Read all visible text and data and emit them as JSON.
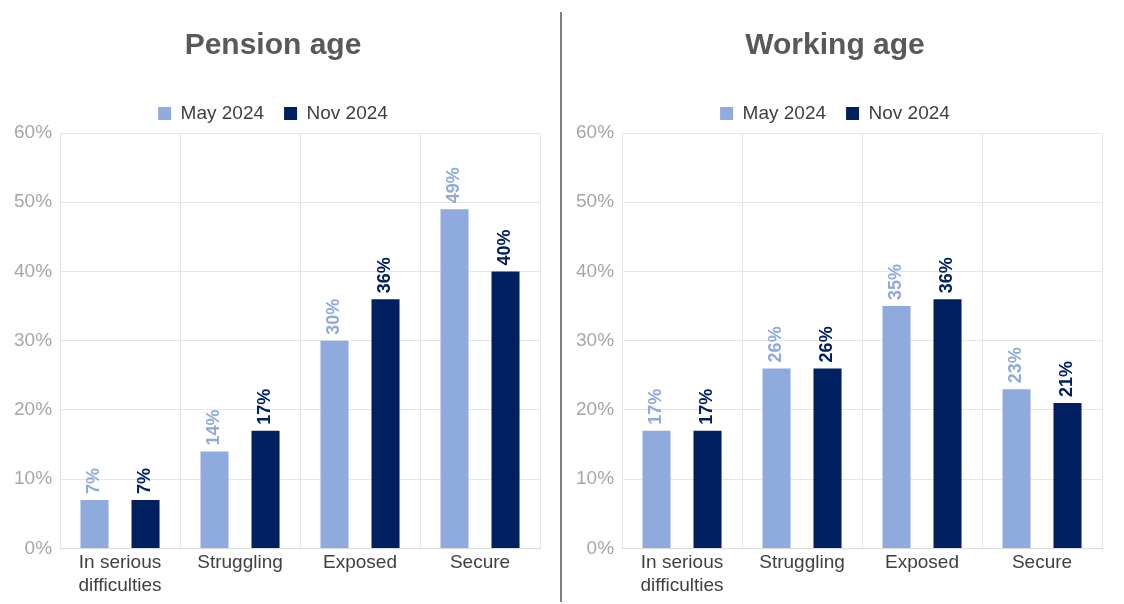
{
  "chart_data": [
    {
      "type": "bar",
      "title": "Pension age",
      "categories": [
        "In serious difficulties",
        "Struggling",
        "Exposed",
        "Secure"
      ],
      "series": [
        {
          "name": "May 2024",
          "color": "#8faadc",
          "values": [
            7,
            14,
            30,
            49
          ],
          "value_labels": [
            "7%",
            "14%",
            "30%",
            "49%"
          ]
        },
        {
          "name": "Nov 2024",
          "color": "#002060",
          "values": [
            7,
            17,
            36,
            40
          ],
          "value_labels": [
            "7%",
            "17%",
            "36%",
            "40%"
          ]
        }
      ],
      "ylim": [
        0,
        60
      ],
      "yticks": [
        {
          "value": 0,
          "label": "0%"
        },
        {
          "value": 10,
          "label": "10%"
        },
        {
          "value": 20,
          "label": "20%"
        },
        {
          "value": 30,
          "label": "30%"
        },
        {
          "value": 40,
          "label": "40%"
        },
        {
          "value": 50,
          "label": "50%"
        },
        {
          "value": 60,
          "label": "60%"
        }
      ],
      "grid": true,
      "legend": "top"
    },
    {
      "type": "bar",
      "title": "Working age",
      "categories": [
        "In serious difficulties",
        "Struggling",
        "Exposed",
        "Secure"
      ],
      "series": [
        {
          "name": "May 2024",
          "color": "#8faadc",
          "values": [
            17,
            26,
            35,
            23
          ],
          "value_labels": [
            "17%",
            "26%",
            "35%",
            "23%"
          ]
        },
        {
          "name": "Nov 2024",
          "color": "#002060",
          "values": [
            17,
            26,
            36,
            21
          ],
          "value_labels": [
            "17%",
            "26%",
            "36%",
            "21%"
          ]
        }
      ],
      "ylim": [
        0,
        60
      ],
      "yticks": [
        {
          "value": 0,
          "label": "0%"
        },
        {
          "value": 10,
          "label": "10%"
        },
        {
          "value": 20,
          "label": "20%"
        },
        {
          "value": 30,
          "label": "30%"
        },
        {
          "value": 40,
          "label": "40%"
        },
        {
          "value": 50,
          "label": "50%"
        },
        {
          "value": 60,
          "label": "60%"
        }
      ],
      "grid": true,
      "legend": "top"
    }
  ]
}
